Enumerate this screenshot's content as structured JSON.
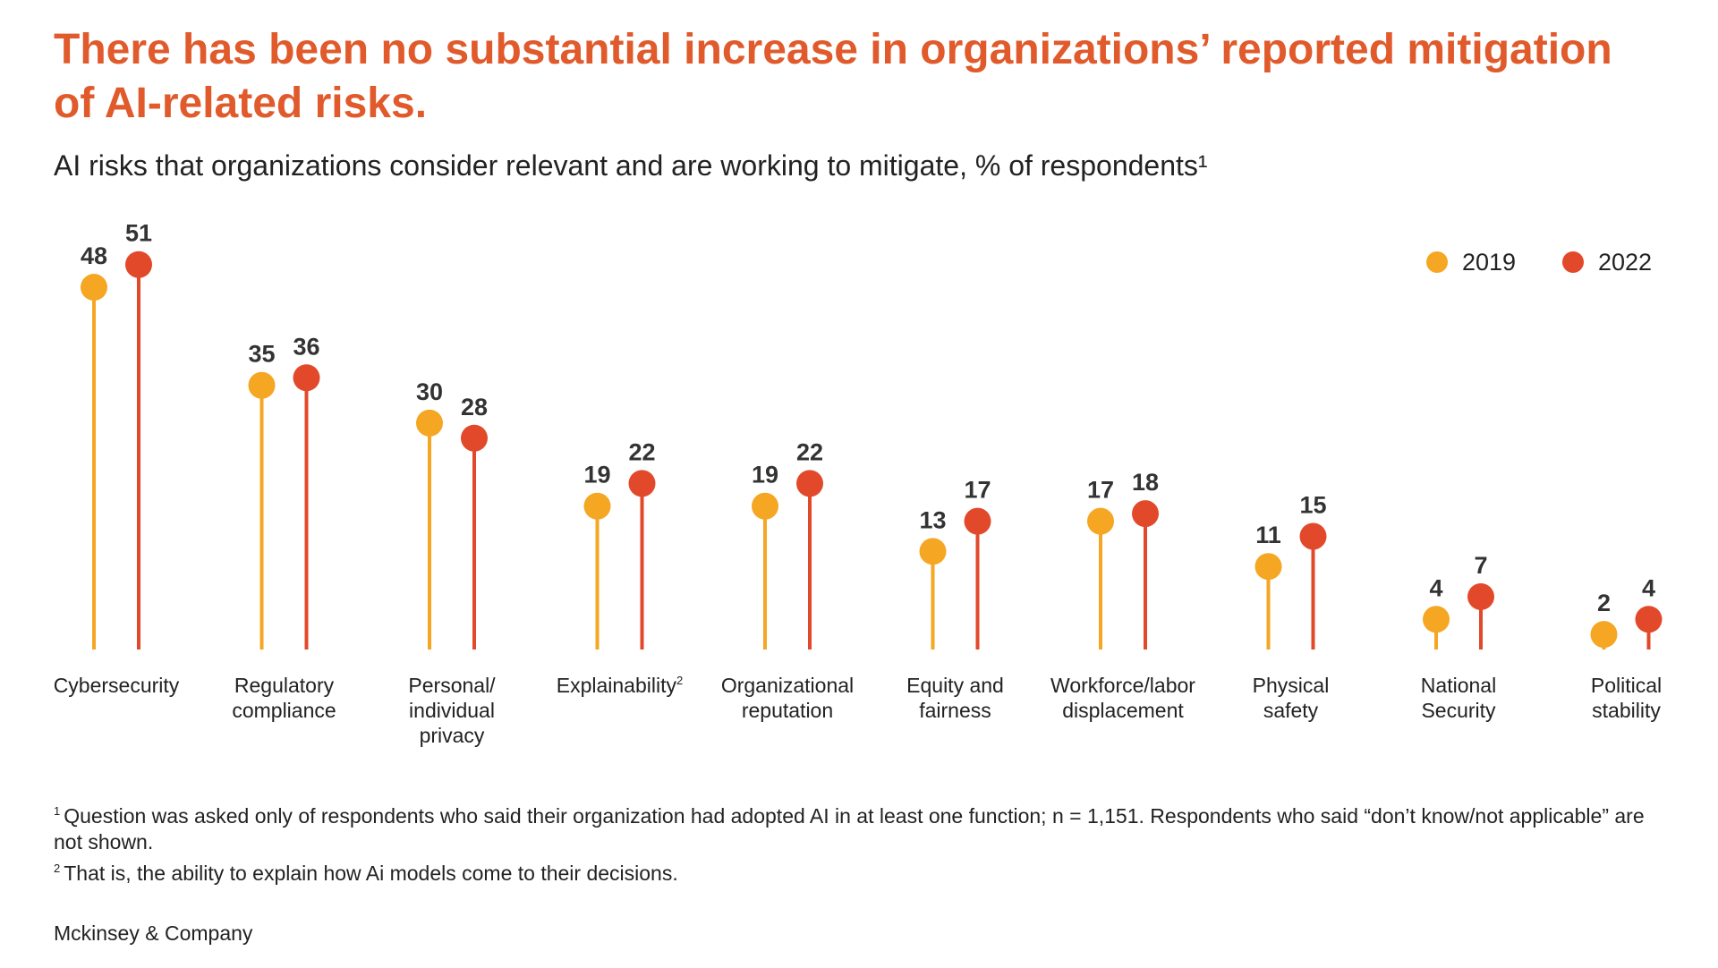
{
  "title": "There has been no substantial increase in organizations’ reported mitigation of AI-related risks.",
  "subtitle": "AI risks that organizations consider relevant and are working to mitigate, % of respondents¹",
  "colors": {
    "title": "#e05a2b",
    "s2019": "#f5a623",
    "s2022": "#e2492b"
  },
  "chart_data": {
    "type": "lollipop",
    "title": "AI risks that organizations consider relevant and are working to mitigate, % of respondents",
    "ylim": [
      0,
      55
    ],
    "grid": false,
    "legend_position": "top-right",
    "categories": [
      {
        "lines": [
          "Cybersecurity"
        ],
        "sup": ""
      },
      {
        "lines": [
          "Regulatory",
          "compliance"
        ],
        "sup": ""
      },
      {
        "lines": [
          "Personal/",
          "individual",
          "privacy"
        ],
        "sup": ""
      },
      {
        "lines": [
          "Explainability"
        ],
        "sup": "2"
      },
      {
        "lines": [
          "Organizational",
          "reputation"
        ],
        "sup": ""
      },
      {
        "lines": [
          "Equity and",
          "fairness"
        ],
        "sup": ""
      },
      {
        "lines": [
          "Workforce/labor",
          "displacement"
        ],
        "sup": ""
      },
      {
        "lines": [
          "Physical",
          "safety"
        ],
        "sup": ""
      },
      {
        "lines": [
          "National",
          "Security"
        ],
        "sup": ""
      },
      {
        "lines": [
          "Political",
          "stability"
        ],
        "sup": ""
      }
    ],
    "series": [
      {
        "name": "2019",
        "color": "#f5a623",
        "values": [
          48,
          35,
          30,
          19,
          19,
          13,
          17,
          11,
          4,
          2
        ]
      },
      {
        "name": "2022",
        "color": "#e2492b",
        "values": [
          51,
          36,
          28,
          22,
          22,
          17,
          18,
          15,
          7,
          4
        ]
      }
    ]
  },
  "footnotes": {
    "n1_marker": "1",
    "n1_text": "Question was asked only of respondents who said their organization had adopted AI in at least one function; n = 1,151. Respondents who said “don’t know/not applicable” are not shown.",
    "n2_marker": "2",
    "n2_text": "That is, the ability to explain how Ai models come to their decisions."
  },
  "source": "Mckinsey & Company"
}
